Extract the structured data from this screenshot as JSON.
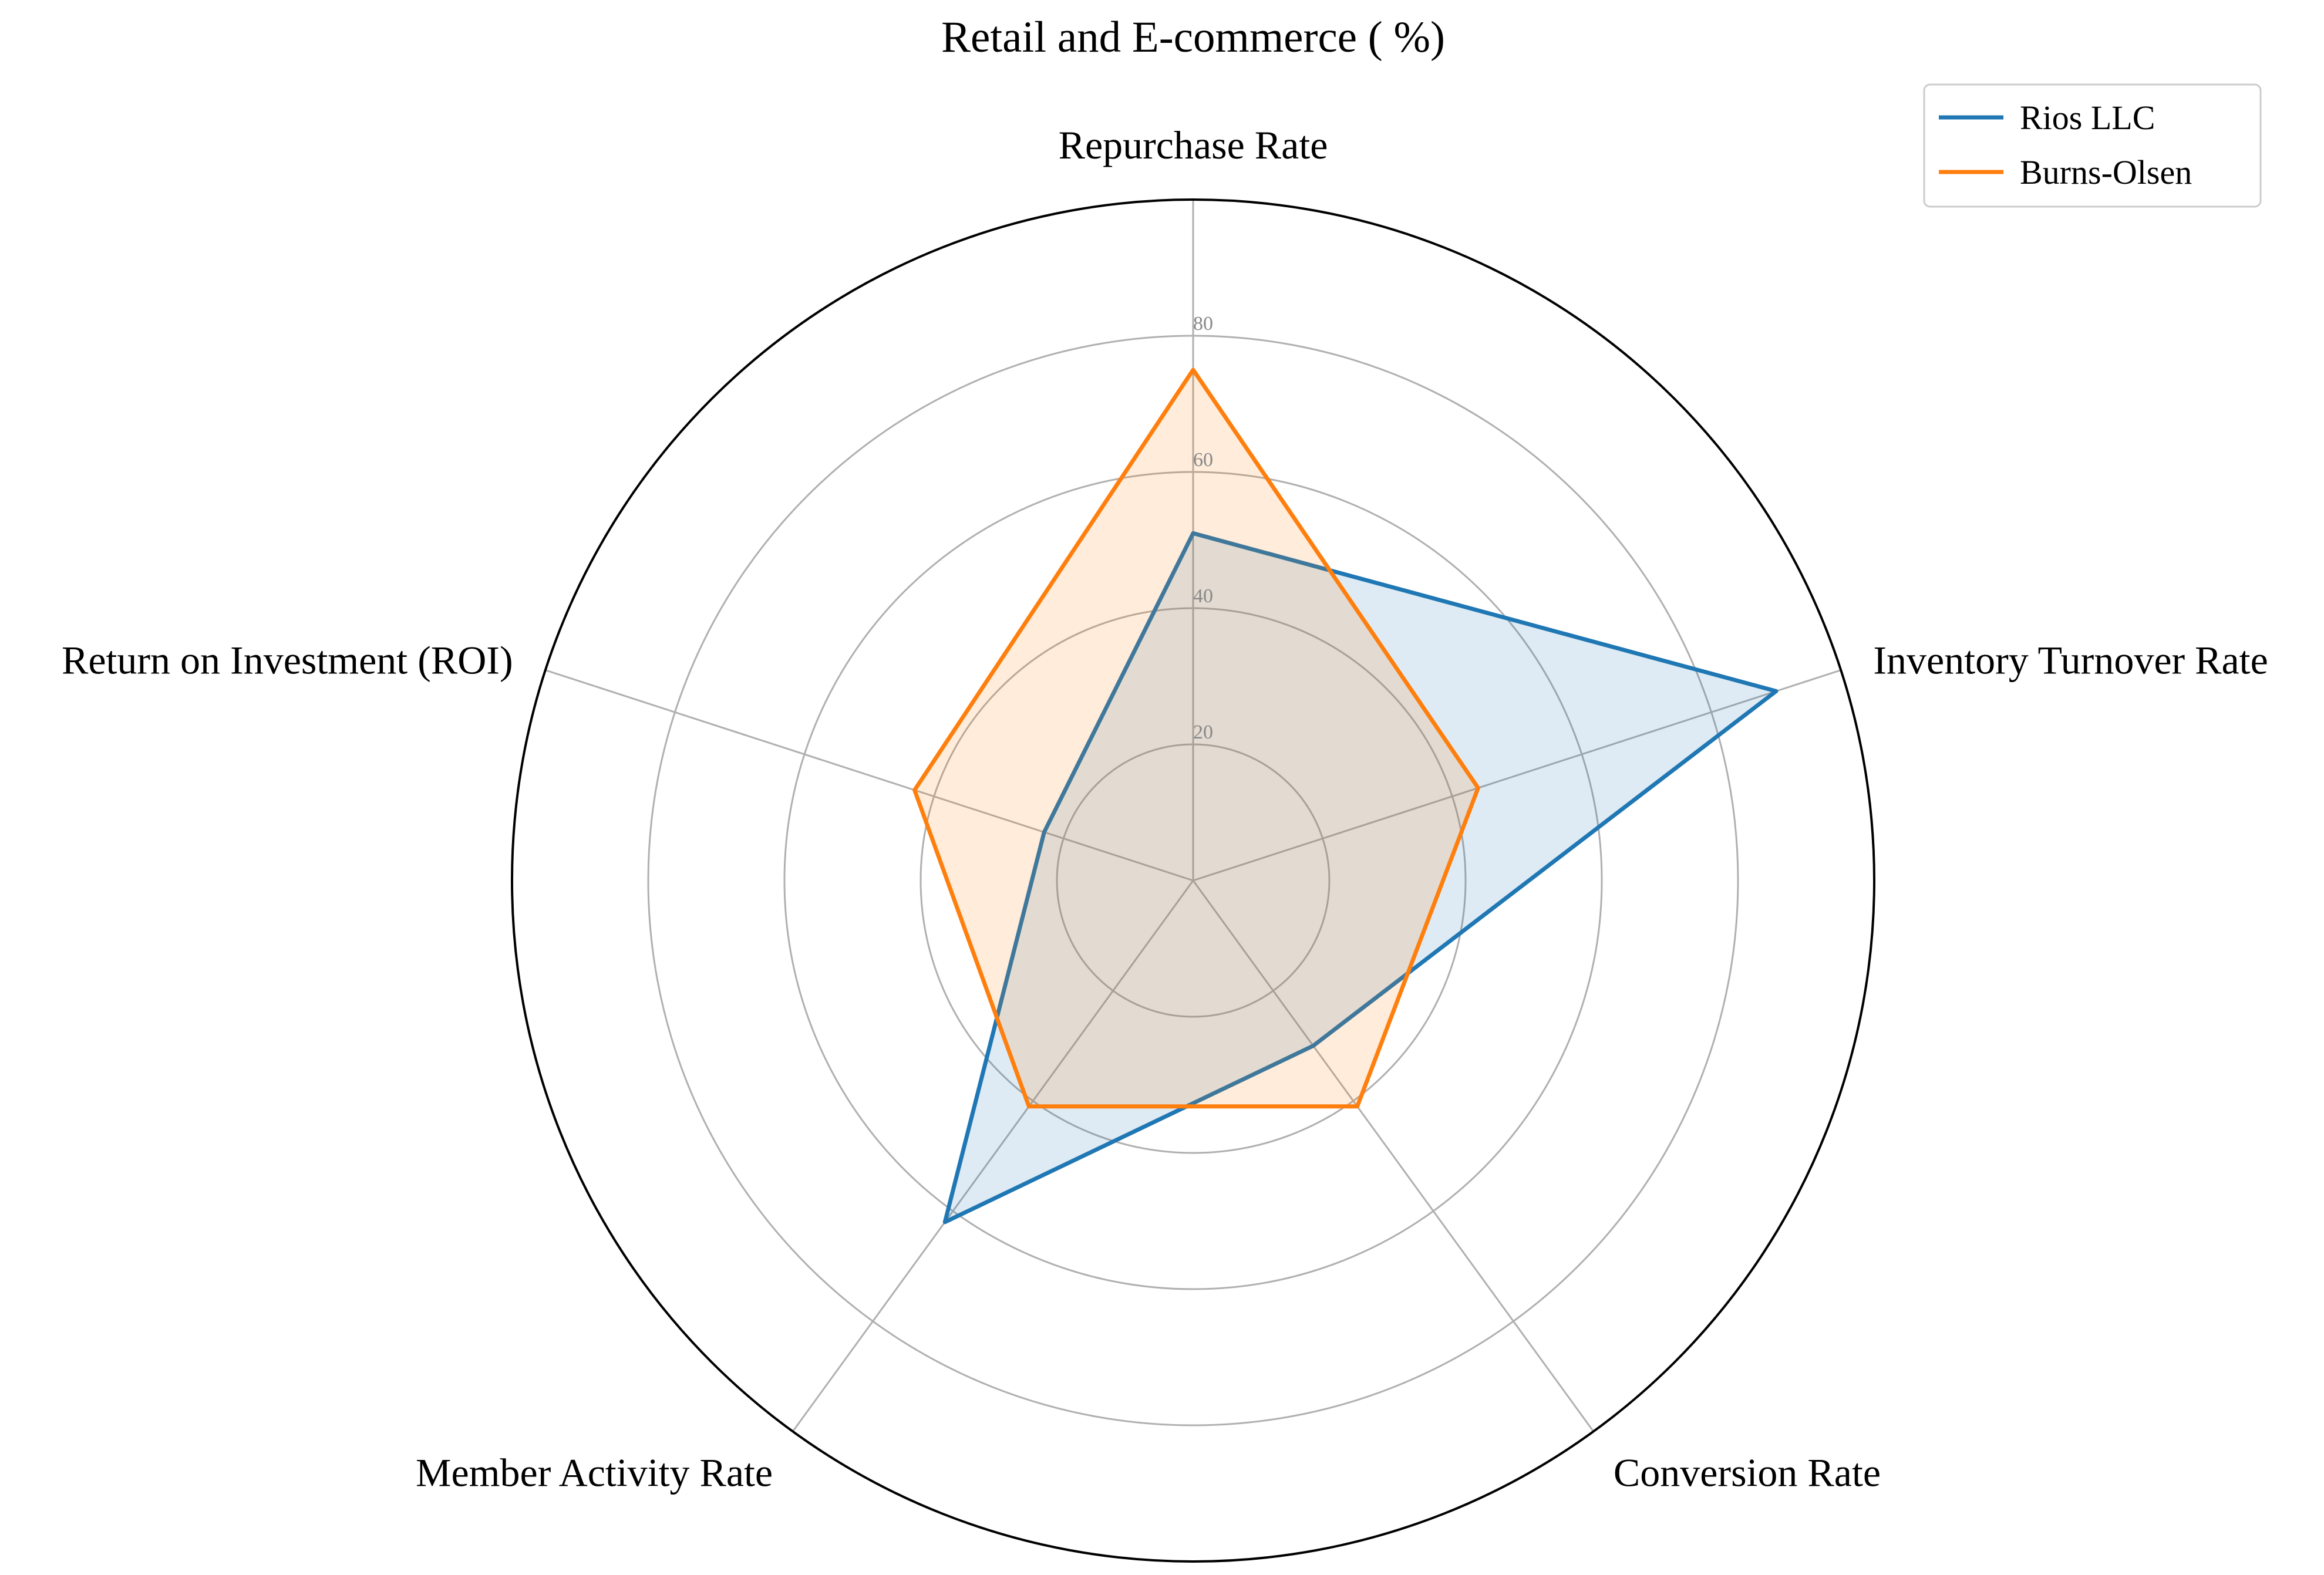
{
  "chart_data": {
    "type": "radar",
    "title": "Retail and E-commerce ( %)",
    "axes": [
      "Repurchase Rate",
      "Inventory Turnover Rate",
      "Conversion Rate",
      "Member Activity Rate",
      "Return on Investment (ROI)"
    ],
    "radial_ticks": [
      20,
      40,
      60,
      80
    ],
    "rlim": [
      0,
      100
    ],
    "grid": true,
    "legend_position": "top-right",
    "series": [
      {
        "name": "Rios LLC",
        "color": "#1f77b4",
        "values": [
          51,
          90,
          30,
          62,
          23
        ]
      },
      {
        "name": "Burns-Olsen",
        "color": "#ff7f0e",
        "values": [
          75,
          44,
          41,
          41,
          43
        ]
      }
    ]
  }
}
